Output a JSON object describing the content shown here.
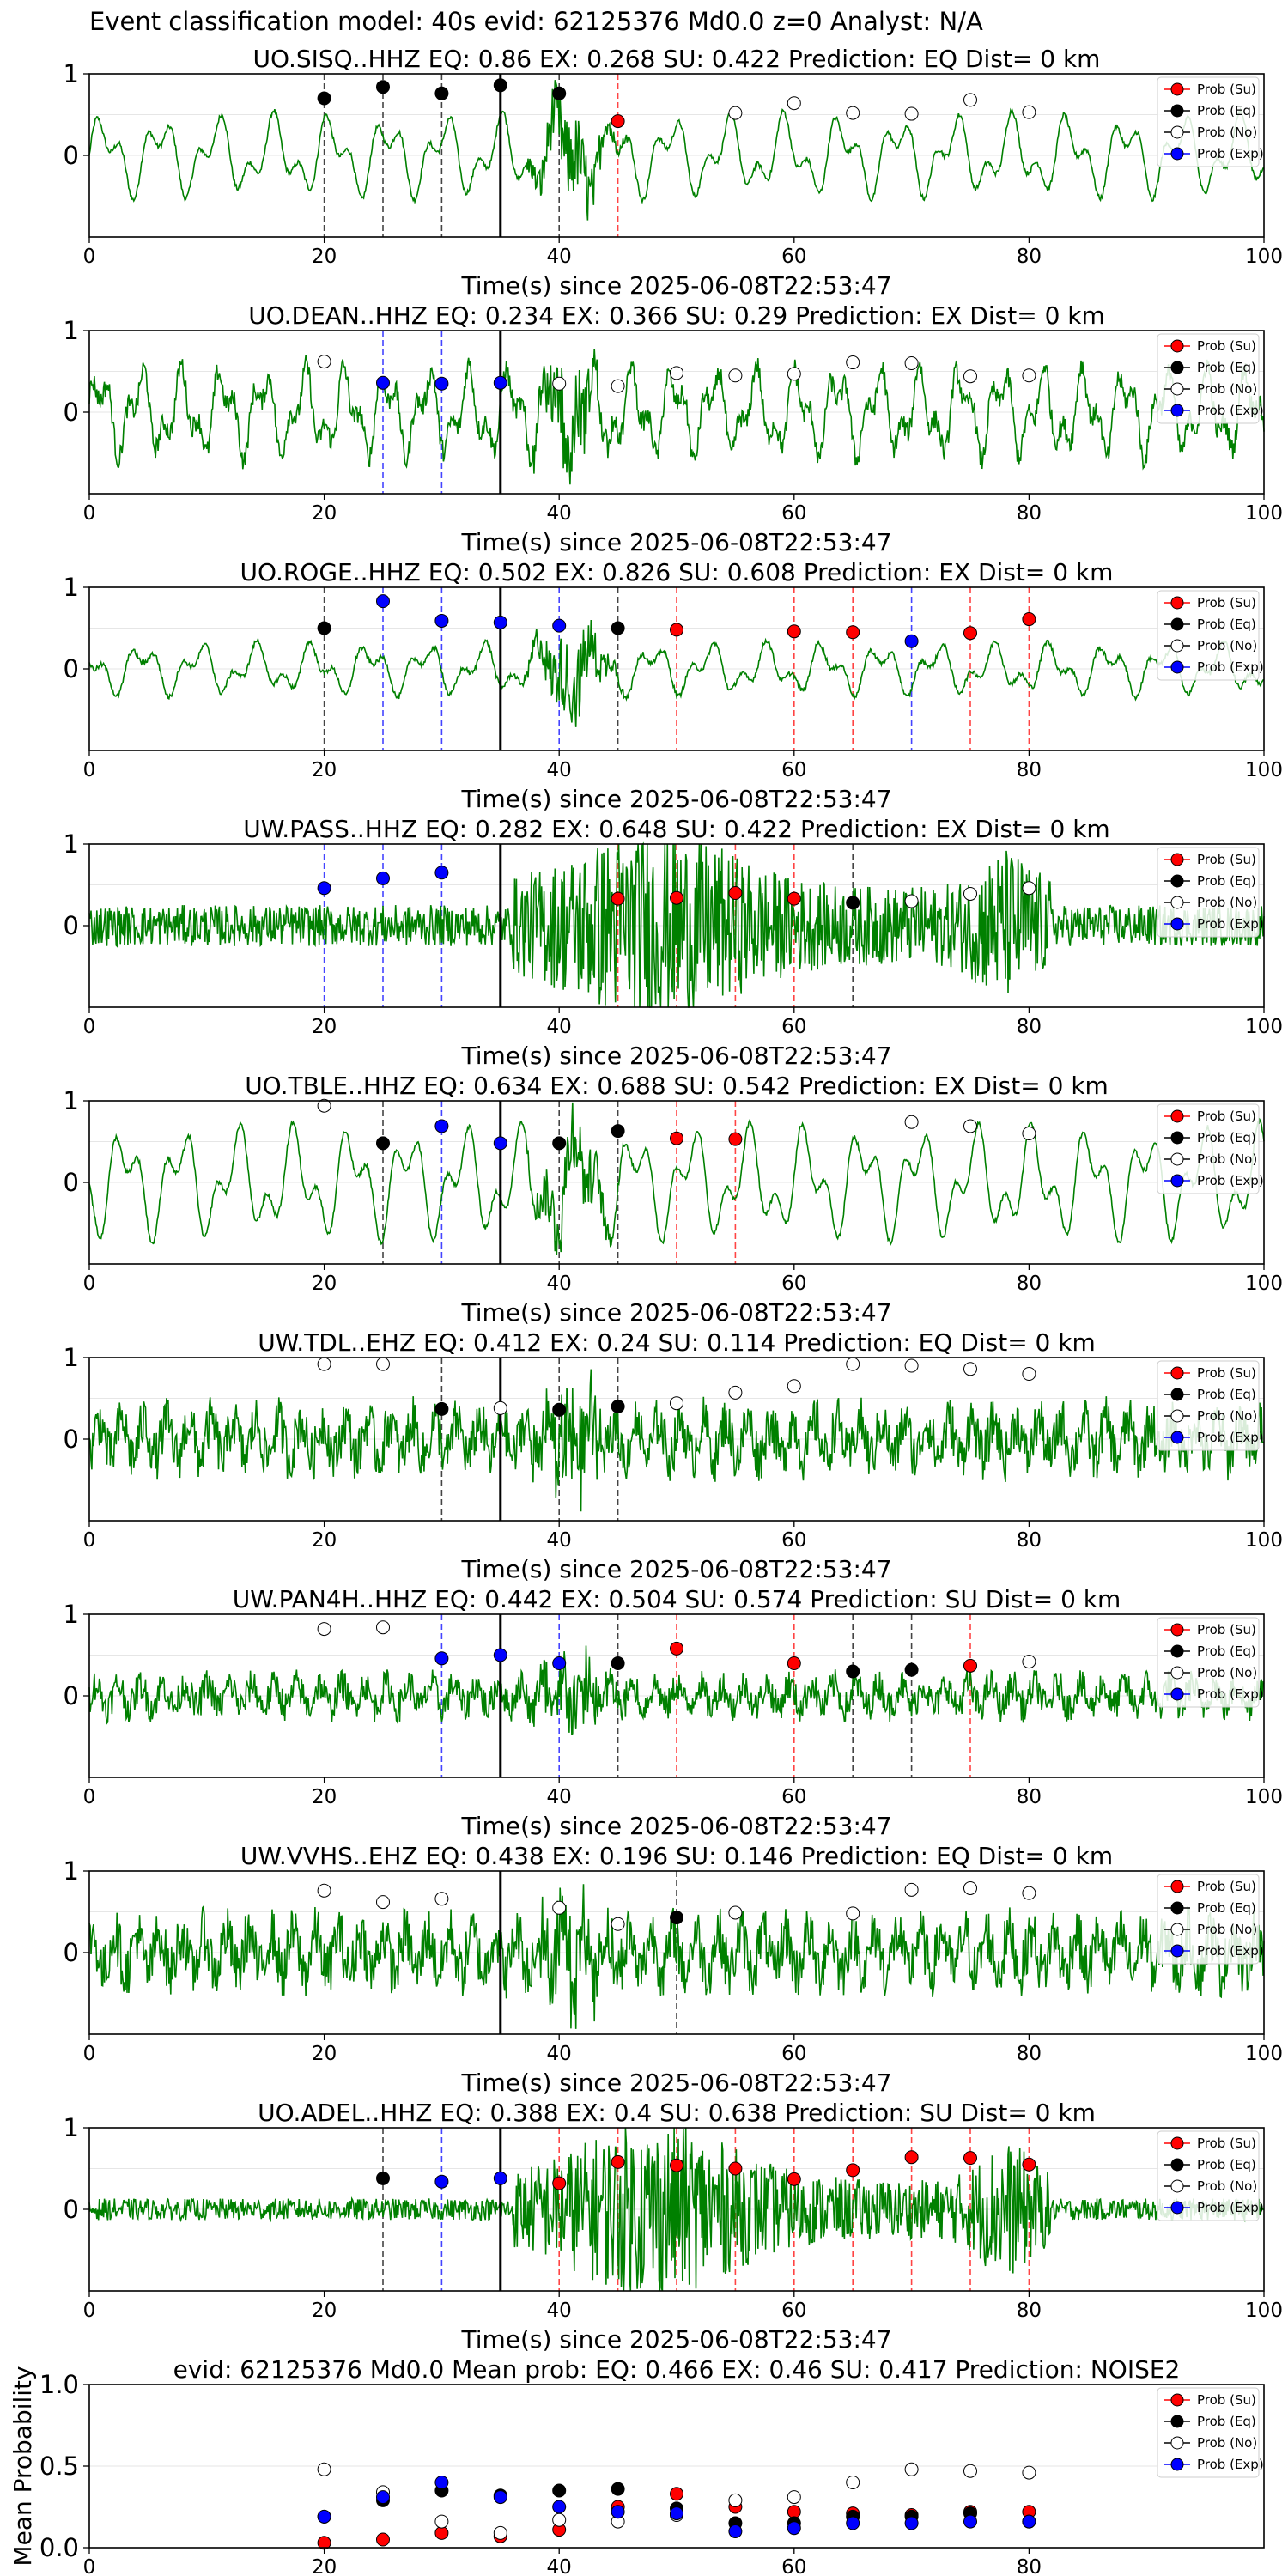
{
  "figure_title": "Event classification model: 40s evid: 62125376 Md0.0 z=0 Analyst: N/A",
  "legend_labels": [
    "Prob (Su)",
    "Prob (Eq)",
    "Prob (No)",
    "Prob (Exp)"
  ],
  "colors": {
    "su": "#ff0000",
    "eq": "#000000",
    "no": "#ffffff",
    "exp": "#0000ff",
    "trace": "#008000",
    "pick_line": "#000000"
  },
  "chart_data": [
    {
      "type": "line",
      "title": "UO.SISQ..HHZ   EQ: 0.86  EX: 0.268  SU: 0.422   Prediction: EQ    Dist= 0 km",
      "xlabel": "Time(s) since 2025-06-08T22:53:47",
      "ylabel": "",
      "xlim": [
        0,
        100
      ],
      "ylim": [
        -1,
        1
      ],
      "xticks": [
        "0",
        "20",
        "40",
        "60",
        "80",
        "100"
      ],
      "yticks": [
        "1",
        "0"
      ],
      "trace_style": "smooth",
      "trace_amplitude": 0.55,
      "pick_time": 35,
      "points": [
        {
          "t": 20,
          "p": 0.7,
          "c": "eq"
        },
        {
          "t": 25,
          "p": 0.84,
          "c": "eq"
        },
        {
          "t": 30,
          "p": 0.76,
          "c": "eq"
        },
        {
          "t": 35,
          "p": 0.86,
          "c": "eq"
        },
        {
          "t": 40,
          "p": 0.76,
          "c": "eq"
        },
        {
          "t": 45,
          "p": 0.42,
          "c": "su"
        },
        {
          "t": 55,
          "p": 0.52,
          "c": "no"
        },
        {
          "t": 60,
          "p": 0.64,
          "c": "no"
        },
        {
          "t": 65,
          "p": 0.52,
          "c": "no"
        },
        {
          "t": 70,
          "p": 0.51,
          "c": "no"
        },
        {
          "t": 75,
          "p": 0.68,
          "c": "no"
        },
        {
          "t": 80,
          "p": 0.53,
          "c": "no"
        }
      ]
    },
    {
      "type": "line",
      "title": "UO.DEAN..HHZ   EQ: 0.234  EX: 0.366  SU: 0.29   Prediction: EX    Dist= 0 km",
      "xlabel": "Time(s) since 2025-06-08T22:53:47",
      "ylabel": "",
      "xlim": [
        0,
        100
      ],
      "ylim": [
        -1,
        1
      ],
      "xticks": [
        "0",
        "20",
        "40",
        "60",
        "80",
        "100"
      ],
      "yticks": [
        "1",
        "0"
      ],
      "trace_style": "medium",
      "trace_amplitude": 0.75,
      "pick_time": 35,
      "points": [
        {
          "t": 20,
          "p": 0.62,
          "c": "no"
        },
        {
          "t": 25,
          "p": 0.36,
          "c": "exp"
        },
        {
          "t": 30,
          "p": 0.35,
          "c": "exp"
        },
        {
          "t": 35,
          "p": 0.36,
          "c": "exp"
        },
        {
          "t": 40,
          "p": 0.35,
          "c": "no"
        },
        {
          "t": 45,
          "p": 0.32,
          "c": "no"
        },
        {
          "t": 50,
          "p": 0.48,
          "c": "no"
        },
        {
          "t": 55,
          "p": 0.45,
          "c": "no"
        },
        {
          "t": 60,
          "p": 0.47,
          "c": "no"
        },
        {
          "t": 65,
          "p": 0.61,
          "c": "no"
        },
        {
          "t": 70,
          "p": 0.6,
          "c": "no"
        },
        {
          "t": 75,
          "p": 0.44,
          "c": "no"
        },
        {
          "t": 80,
          "p": 0.45,
          "c": "no"
        }
      ]
    },
    {
      "type": "line",
      "title": "UO.ROGE..HHZ   EQ: 0.502  EX: 0.826  SU: 0.608   Prediction: EX    Dist= 0 km",
      "xlabel": "Time(s) since 2025-06-08T22:53:47",
      "ylabel": "",
      "xlim": [
        0,
        100
      ],
      "ylim": [
        -1,
        1
      ],
      "xticks": [
        "0",
        "20",
        "40",
        "60",
        "80",
        "100"
      ],
      "yticks": [
        "1",
        "0"
      ],
      "trace_style": "smooth",
      "trace_amplitude": 0.35,
      "pick_time": 35,
      "points": [
        {
          "t": 20,
          "p": 0.5,
          "c": "eq"
        },
        {
          "t": 25,
          "p": 0.83,
          "c": "exp"
        },
        {
          "t": 30,
          "p": 0.59,
          "c": "exp"
        },
        {
          "t": 35,
          "p": 0.57,
          "c": "exp"
        },
        {
          "t": 40,
          "p": 0.53,
          "c": "exp"
        },
        {
          "t": 45,
          "p": 0.5,
          "c": "eq"
        },
        {
          "t": 50,
          "p": 0.48,
          "c": "su"
        },
        {
          "t": 60,
          "p": 0.46,
          "c": "su"
        },
        {
          "t": 65,
          "p": 0.45,
          "c": "su"
        },
        {
          "t": 70,
          "p": 0.34,
          "c": "exp"
        },
        {
          "t": 75,
          "p": 0.44,
          "c": "su"
        },
        {
          "t": 80,
          "p": 0.61,
          "c": "su"
        }
      ]
    },
    {
      "type": "line",
      "title": "UW.PASS..HHZ   EQ: 0.282  EX: 0.648  SU: 0.422   Prediction: EX    Dist= 0 km",
      "xlabel": "Time(s) since 2025-06-08T22:53:47",
      "ylabel": "",
      "xlim": [
        0,
        100
      ],
      "ylim": [
        -1,
        1
      ],
      "xticks": [
        "0",
        "20",
        "40",
        "60",
        "80",
        "100"
      ],
      "yticks": [
        "1",
        "0"
      ],
      "trace_style": "burst",
      "trace_amplitude": 0.15,
      "pick_time": 35,
      "points": [
        {
          "t": 20,
          "p": 0.46,
          "c": "exp"
        },
        {
          "t": 25,
          "p": 0.58,
          "c": "exp"
        },
        {
          "t": 30,
          "p": 0.65,
          "c": "exp"
        },
        {
          "t": 45,
          "p": 0.33,
          "c": "su"
        },
        {
          "t": 50,
          "p": 0.34,
          "c": "su"
        },
        {
          "t": 55,
          "p": 0.4,
          "c": "su"
        },
        {
          "t": 60,
          "p": 0.33,
          "c": "su"
        },
        {
          "t": 65,
          "p": 0.28,
          "c": "eq"
        },
        {
          "t": 70,
          "p": 0.3,
          "c": "no"
        },
        {
          "t": 75,
          "p": 0.39,
          "c": "no"
        },
        {
          "t": 80,
          "p": 0.46,
          "c": "no"
        }
      ]
    },
    {
      "type": "line",
      "title": "UO.TBLE..HHZ   EQ: 0.634  EX: 0.688  SU: 0.542   Prediction: EX    Dist= 0 km",
      "xlabel": "Time(s) since 2025-06-08T22:53:47",
      "ylabel": "",
      "xlim": [
        0,
        100
      ],
      "ylim": [
        -1,
        1
      ],
      "xticks": [
        "0",
        "20",
        "40",
        "60",
        "80",
        "100"
      ],
      "yticks": [
        "1",
        "0"
      ],
      "trace_style": "smooth",
      "trace_amplitude": 0.75,
      "pick_time": 35,
      "points": [
        {
          "t": 20,
          "p": 0.94,
          "c": "no"
        },
        {
          "t": 25,
          "p": 0.48,
          "c": "eq"
        },
        {
          "t": 30,
          "p": 0.69,
          "c": "exp"
        },
        {
          "t": 35,
          "p": 0.48,
          "c": "exp"
        },
        {
          "t": 40,
          "p": 0.48,
          "c": "eq"
        },
        {
          "t": 45,
          "p": 0.63,
          "c": "eq"
        },
        {
          "t": 50,
          "p": 0.54,
          "c": "su"
        },
        {
          "t": 55,
          "p": 0.53,
          "c": "su"
        },
        {
          "t": 70,
          "p": 0.74,
          "c": "no"
        },
        {
          "t": 75,
          "p": 0.69,
          "c": "no"
        },
        {
          "t": 80,
          "p": 0.6,
          "c": "no"
        }
      ]
    },
    {
      "type": "line",
      "title": "UW.TDL..EHZ   EQ: 0.412  EX: 0.24  SU: 0.114   Prediction: EQ    Dist= 0 km",
      "xlabel": "Time(s) since 2025-06-08T22:53:47",
      "ylabel": "",
      "xlim": [
        0,
        100
      ],
      "ylim": [
        -1,
        1
      ],
      "xticks": [
        "0",
        "20",
        "40",
        "60",
        "80",
        "100"
      ],
      "yticks": [
        "1",
        "0"
      ],
      "trace_style": "noisy",
      "trace_amplitude": 0.55,
      "pick_time": 35,
      "points": [
        {
          "t": 20,
          "p": 0.92,
          "c": "no"
        },
        {
          "t": 25,
          "p": 0.92,
          "c": "no"
        },
        {
          "t": 30,
          "p": 0.37,
          "c": "eq"
        },
        {
          "t": 35,
          "p": 0.38,
          "c": "no"
        },
        {
          "t": 40,
          "p": 0.36,
          "c": "eq"
        },
        {
          "t": 45,
          "p": 0.4,
          "c": "eq"
        },
        {
          "t": 50,
          "p": 0.44,
          "c": "no"
        },
        {
          "t": 55,
          "p": 0.57,
          "c": "no"
        },
        {
          "t": 60,
          "p": 0.65,
          "c": "no"
        },
        {
          "t": 65,
          "p": 0.92,
          "c": "no"
        },
        {
          "t": 70,
          "p": 0.9,
          "c": "no"
        },
        {
          "t": 75,
          "p": 0.86,
          "c": "no"
        },
        {
          "t": 80,
          "p": 0.8,
          "c": "no"
        }
      ]
    },
    {
      "type": "line",
      "title": "UW.PAN4H..HHZ   EQ: 0.442  EX: 0.504  SU: 0.574   Prediction: SU    Dist= 0 km",
      "xlabel": "Time(s) since 2025-06-08T22:53:47",
      "ylabel": "",
      "xlim": [
        0,
        100
      ],
      "ylim": [
        -1,
        1
      ],
      "xticks": [
        "0",
        "20",
        "40",
        "60",
        "80",
        "100"
      ],
      "yticks": [
        "1",
        "0"
      ],
      "trace_style": "noisy",
      "trace_amplitude": 0.35,
      "pick_time": 35,
      "points": [
        {
          "t": 20,
          "p": 0.82,
          "c": "no"
        },
        {
          "t": 25,
          "p": 0.84,
          "c": "no"
        },
        {
          "t": 30,
          "p": 0.46,
          "c": "exp"
        },
        {
          "t": 35,
          "p": 0.5,
          "c": "exp"
        },
        {
          "t": 40,
          "p": 0.4,
          "c": "exp"
        },
        {
          "t": 45,
          "p": 0.4,
          "c": "eq"
        },
        {
          "t": 50,
          "p": 0.58,
          "c": "su"
        },
        {
          "t": 60,
          "p": 0.4,
          "c": "su"
        },
        {
          "t": 65,
          "p": 0.3,
          "c": "eq"
        },
        {
          "t": 70,
          "p": 0.32,
          "c": "eq"
        },
        {
          "t": 75,
          "p": 0.37,
          "c": "su"
        },
        {
          "t": 80,
          "p": 0.42,
          "c": "no"
        }
      ]
    },
    {
      "type": "line",
      "title": "UW.VVHS..EHZ   EQ: 0.438  EX: 0.196  SU: 0.146   Prediction: EQ    Dist= 0 km",
      "xlabel": "Time(s) since 2025-06-08T22:53:47",
      "ylabel": "",
      "xlim": [
        0,
        100
      ],
      "ylim": [
        -1,
        1
      ],
      "xticks": [
        "0",
        "20",
        "40",
        "60",
        "80",
        "100"
      ],
      "yticks": [
        "1",
        "0"
      ],
      "trace_style": "noisy",
      "trace_amplitude": 0.6,
      "pick_time": 35,
      "points": [
        {
          "t": 20,
          "p": 0.76,
          "c": "no"
        },
        {
          "t": 25,
          "p": 0.62,
          "c": "no"
        },
        {
          "t": 30,
          "p": 0.66,
          "c": "no"
        },
        {
          "t": 40,
          "p": 0.55,
          "c": "no"
        },
        {
          "t": 45,
          "p": 0.35,
          "c": "no"
        },
        {
          "t": 50,
          "p": 0.43,
          "c": "eq"
        },
        {
          "t": 55,
          "p": 0.49,
          "c": "no"
        },
        {
          "t": 65,
          "p": 0.48,
          "c": "no"
        },
        {
          "t": 70,
          "p": 0.77,
          "c": "no"
        },
        {
          "t": 75,
          "p": 0.79,
          "c": "no"
        },
        {
          "t": 80,
          "p": 0.73,
          "c": "no"
        }
      ]
    },
    {
      "type": "line",
      "title": "UO.ADEL..HHZ   EQ: 0.388  EX: 0.4  SU: 0.638   Prediction: SU    Dist= 0 km",
      "xlabel": "Time(s) since 2025-06-08T22:53:47",
      "ylabel": "",
      "xlim": [
        0,
        100
      ],
      "ylim": [
        -1,
        1
      ],
      "xticks": [
        "0",
        "20",
        "40",
        "60",
        "80",
        "100"
      ],
      "yticks": [
        "1",
        "0"
      ],
      "trace_style": "burst",
      "trace_amplitude": 0.05,
      "pick_time": 35,
      "points": [
        {
          "t": 25,
          "p": 0.38,
          "c": "eq"
        },
        {
          "t": 30,
          "p": 0.34,
          "c": "exp"
        },
        {
          "t": 35,
          "p": 0.38,
          "c": "exp"
        },
        {
          "t": 40,
          "p": 0.32,
          "c": "su"
        },
        {
          "t": 45,
          "p": 0.58,
          "c": "su"
        },
        {
          "t": 50,
          "p": 0.54,
          "c": "su"
        },
        {
          "t": 55,
          "p": 0.5,
          "c": "su"
        },
        {
          "t": 60,
          "p": 0.37,
          "c": "su"
        },
        {
          "t": 65,
          "p": 0.48,
          "c": "su"
        },
        {
          "t": 70,
          "p": 0.64,
          "c": "su"
        },
        {
          "t": 75,
          "p": 0.63,
          "c": "su"
        },
        {
          "t": 80,
          "p": 0.55,
          "c": "su"
        }
      ]
    },
    {
      "type": "scatter",
      "title": "evid: 62125376  Md0.0   Mean prob:   EQ: 0.466  EX: 0.46  SU: 0.417   Prediction: NOISE2",
      "xlabel": "",
      "ylabel": "Mean Probability",
      "xlim": [
        0,
        100
      ],
      "ylim": [
        0,
        1
      ],
      "xticks": [
        "0",
        "20",
        "40",
        "60",
        "80"
      ],
      "yticks": [
        "1.0",
        "0.5",
        "0.0"
      ],
      "series": [
        {
          "name": "Prob (Su)",
          "c": "su",
          "x": [
            20,
            25,
            30,
            35,
            40,
            45,
            50,
            55,
            60,
            65,
            70,
            75,
            80
          ],
          "values": [
            0.03,
            0.05,
            0.09,
            0.07,
            0.11,
            0.25,
            0.33,
            0.25,
            0.22,
            0.21,
            0.2,
            0.22,
            0.22
          ]
        },
        {
          "name": "Prob (Eq)",
          "c": "eq",
          "x": [
            20,
            25,
            30,
            35,
            40,
            45,
            50,
            55,
            60,
            65,
            70,
            75,
            80
          ],
          "values": [
            0.19,
            0.29,
            0.35,
            0.32,
            0.35,
            0.36,
            0.24,
            0.15,
            0.15,
            0.19,
            0.19,
            0.21,
            0.16
          ]
        },
        {
          "name": "Prob (No)",
          "c": "no",
          "x": [
            20,
            25,
            30,
            35,
            40,
            45,
            50,
            55,
            60,
            65,
            70,
            75,
            80
          ],
          "values": [
            0.48,
            0.34,
            0.16,
            0.09,
            0.17,
            0.16,
            0.2,
            0.29,
            0.31,
            0.4,
            0.48,
            0.47,
            0.46
          ]
        },
        {
          "name": "Prob (Exp)",
          "c": "exp",
          "x": [
            20,
            25,
            30,
            35,
            40,
            45,
            50,
            55,
            60,
            65,
            70,
            75,
            80
          ],
          "values": [
            0.19,
            0.31,
            0.4,
            0.31,
            0.25,
            0.22,
            0.21,
            0.1,
            0.12,
            0.15,
            0.15,
            0.16,
            0.16
          ]
        }
      ]
    }
  ]
}
